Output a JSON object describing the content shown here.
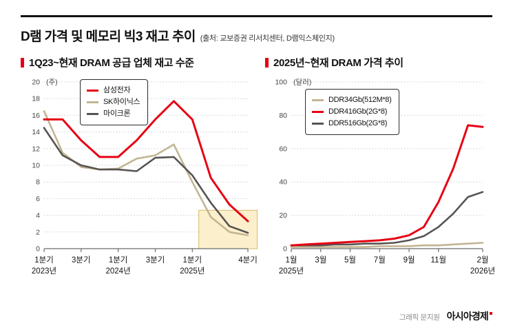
{
  "header": {
    "title": "D램 가격 및 메모리 빅3 재고 추이",
    "source": "(출처: 교보증권 리서치센터, D램익스체인지)"
  },
  "footer": {
    "credit": "그래픽 문지원",
    "brand": "아시아경제"
  },
  "colors": {
    "accent_red": "#e60013",
    "tan": "#c2b593",
    "dark_gray": "#575352",
    "grid": "#c9c9c9",
    "axis": "#6b6b6b",
    "highlight_fill": "#fbf0cb",
    "highlight_stroke": "#d9ba67"
  },
  "chart_data": [
    {
      "type": "line",
      "title": "1Q23~현재 DRAM 공급 업체 재고 수준",
      "unit": "(주)",
      "ylim": [
        0,
        20
      ],
      "yticks": [
        0,
        2,
        4,
        6,
        8,
        10,
        12,
        14,
        16,
        18,
        20
      ],
      "grid": true,
      "legend_position": "top-left-inside",
      "x_count": 12,
      "x_ticks": [
        {
          "i": 0,
          "label": "1분기",
          "sub": "2023년"
        },
        {
          "i": 2,
          "label": "3분기"
        },
        {
          "i": 4,
          "label": "1분기",
          "sub": "2024년"
        },
        {
          "i": 6,
          "label": "3분기"
        },
        {
          "i": 8,
          "label": "1분기",
          "sub": "2025년"
        },
        {
          "i": 11,
          "label": "4분기"
        }
      ],
      "draw_order": [
        1,
        2,
        0
      ],
      "series": [
        {
          "name": "삼성전자",
          "color": "#e60013",
          "width": 3,
          "values": [
            15.5,
            15.5,
            13,
            11,
            11,
            13,
            15.5,
            17.7,
            15.5,
            8.5,
            5.3,
            3.3
          ]
        },
        {
          "name": "SK하이닉스",
          "color": "#c2b593",
          "width": 2.6,
          "values": [
            16.5,
            11.5,
            9.8,
            9.5,
            9.6,
            10.8,
            11.2,
            12.5,
            8,
            3.8,
            2,
            1.6
          ]
        },
        {
          "name": "마이크론",
          "color": "#575352",
          "width": 2.6,
          "values": [
            14.5,
            11.2,
            10,
            9.5,
            9.5,
            9.3,
            10.9,
            11,
            8.8,
            5.5,
            2.7,
            1.9
          ]
        }
      ],
      "highlight": {
        "x_start": 8.35,
        "x_end": 11.5,
        "y_min": 0,
        "y_max": 4.6
      }
    },
    {
      "type": "line",
      "title": "2025년~현재 DRAM 가격 추이",
      "unit": "(달러)",
      "ylim": [
        0,
        100
      ],
      "yticks": [
        0,
        20,
        40,
        60,
        80,
        100
      ],
      "grid": true,
      "legend_position": "top-left-inside",
      "x_count": 14,
      "x_ticks": [
        {
          "i": 0,
          "label": "1월",
          "sub": "2025년"
        },
        {
          "i": 2,
          "label": "3월"
        },
        {
          "i": 4,
          "label": "5월"
        },
        {
          "i": 6,
          "label": "7월"
        },
        {
          "i": 8,
          "label": "9월"
        },
        {
          "i": 10,
          "label": "11월"
        },
        {
          "i": 13,
          "label": "2월",
          "sub": "2026년"
        }
      ],
      "draw_order": [
        0,
        2,
        1
      ],
      "series": [
        {
          "name": "DDR34Gb(512M*8)",
          "color": "#c2b593",
          "width": 2.6,
          "values": [
            1,
            1,
            1,
            1,
            1,
            1,
            1.5,
            1.5,
            1.5,
            2,
            2,
            2.5,
            3,
            3.5
          ]
        },
        {
          "name": "DDR416Gb(2G*8)",
          "color": "#e60013",
          "width": 3,
          "values": [
            2,
            2.5,
            3,
            3.5,
            4,
            4.5,
            5,
            6,
            8,
            13,
            28,
            48,
            74,
            73
          ]
        },
        {
          "name": "DDR516Gb(2G*8)",
          "color": "#575352",
          "width": 2.6,
          "values": [
            2,
            2,
            2,
            2.5,
            2.5,
            3,
            3,
            3.5,
            5,
            7.5,
            13,
            21,
            31,
            34
          ]
        }
      ]
    }
  ]
}
